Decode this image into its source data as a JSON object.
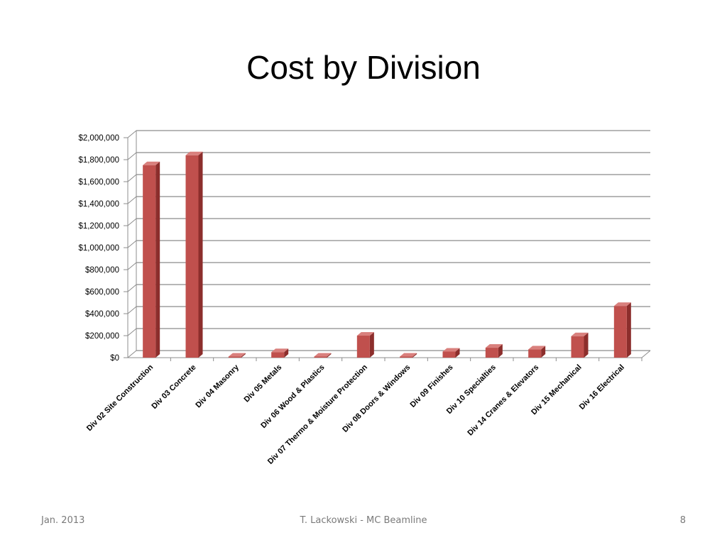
{
  "slide": {
    "title": "Cost by Division",
    "footer_left": "Jan. 2013",
    "footer_center": "T. Lackowski - MC Beamline",
    "page_number": "8"
  },
  "colors": {
    "bar_front": "#c0504d",
    "bar_side": "#8c2e2c",
    "bar_top": "#d9807d",
    "gridline": "#8c8c8c",
    "axis_text": "#000000"
  },
  "chart_data": {
    "type": "bar",
    "style": "3d-column",
    "title": "",
    "xlabel": "",
    "ylabel": "",
    "ylim": [
      0,
      2000000
    ],
    "yticks": [
      0,
      200000,
      400000,
      600000,
      800000,
      1000000,
      1200000,
      1400000,
      1600000,
      1800000,
      2000000
    ],
    "ytick_labels": [
      "$0",
      "$200,000",
      "$400,000",
      "$600,000",
      "$800,000",
      "$1,000,000",
      "$1,200,000",
      "$1,400,000",
      "$1,600,000",
      "$1,800,000",
      "$2,000,000"
    ],
    "grid": true,
    "legend": "none",
    "categories": [
      "Div 02 Site Construction",
      "Div 03 Concrete",
      "Div 04 Masonry",
      "Div 05 Metals",
      "Div 06 Wood & Plastics",
      "Div 07 Thermo & Moisture Protection",
      "Div 08 Doors & Windows",
      "Div 09 Finishes",
      "Div 10 Specialties",
      "Div 14 Cranes & Elevators",
      "Div 15 Mechanical",
      "Div 16 Electrical"
    ],
    "values": [
      1750000,
      1840000,
      0,
      50000,
      0,
      200000,
      8000,
      55000,
      90000,
      75000,
      195000,
      470000
    ]
  }
}
